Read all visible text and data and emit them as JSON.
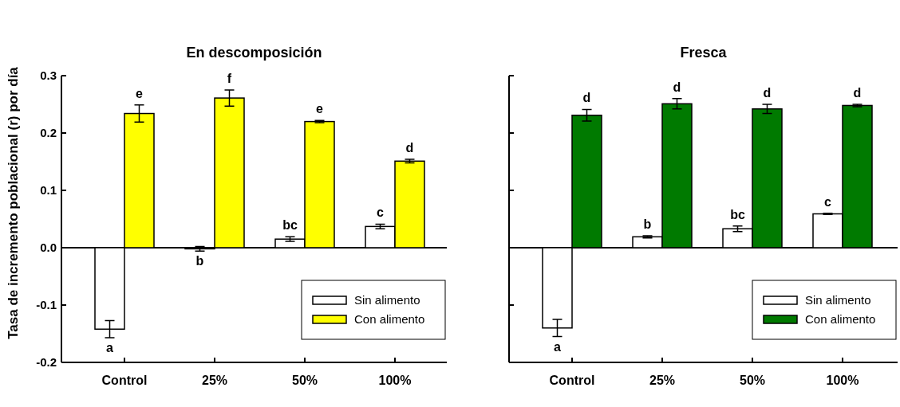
{
  "chart_data": [
    {
      "type": "bar",
      "title": "En descomposición",
      "ylabel": "Tasa de incremento poblacional (r) por día",
      "categories": [
        "Control",
        "25%",
        "50%",
        "100%"
      ],
      "series": [
        {
          "name": "Sin alimento",
          "color": "#ffffff",
          "values": [
            -0.142,
            -0.002,
            0.015,
            0.037
          ],
          "errors": [
            0.015,
            0.004,
            0.004,
            0.004
          ],
          "value_labels": [
            "a",
            "b",
            "bc",
            "c"
          ]
        },
        {
          "name": "Con alimento",
          "color": "#ffff00",
          "values": [
            0.234,
            0.261,
            0.22,
            0.151
          ],
          "errors": [
            0.015,
            0.014,
            0.002,
            0.003
          ],
          "value_labels": [
            "e",
            "f",
            "e",
            "d"
          ]
        }
      ],
      "ylim": [
        -0.2,
        0.3
      ],
      "yticks": [
        -0.2,
        -0.1,
        {
          "value": 0,
          "label": "0.0"
        },
        0.1,
        0.2,
        0.3
      ],
      "legend": "bottom right",
      "ref_lines": [
        {
          "axis": "y",
          "value": 0
        }
      ]
    },
    {
      "type": "bar",
      "title": "Fresca",
      "categories": [
        "Control",
        "25%",
        "50%",
        "100%"
      ],
      "series": [
        {
          "name": "Sin alimento",
          "color": "#ffffff",
          "values": [
            -0.14,
            0.019,
            0.033,
            0.059
          ],
          "errors": [
            0.015,
            0.002,
            0.005,
            0.001
          ],
          "value_labels": [
            "a",
            "b",
            "bc",
            "c"
          ]
        },
        {
          "name": "Con alimento",
          "color": "#007a00",
          "values": [
            0.231,
            0.251,
            0.242,
            0.248
          ],
          "errors": [
            0.01,
            0.009,
            0.008,
            0.002
          ],
          "value_labels": [
            "d",
            "d",
            "d",
            "d"
          ]
        }
      ],
      "ylim": [
        -0.2,
        0.3
      ],
      "yticks": [
        -0.2,
        -0.1,
        0,
        0.1,
        0.2,
        0.3
      ],
      "tick_labels": "x",
      "legend": "bottom right",
      "ref_lines": [
        {
          "axis": "y",
          "value": 0
        }
      ]
    }
  ]
}
